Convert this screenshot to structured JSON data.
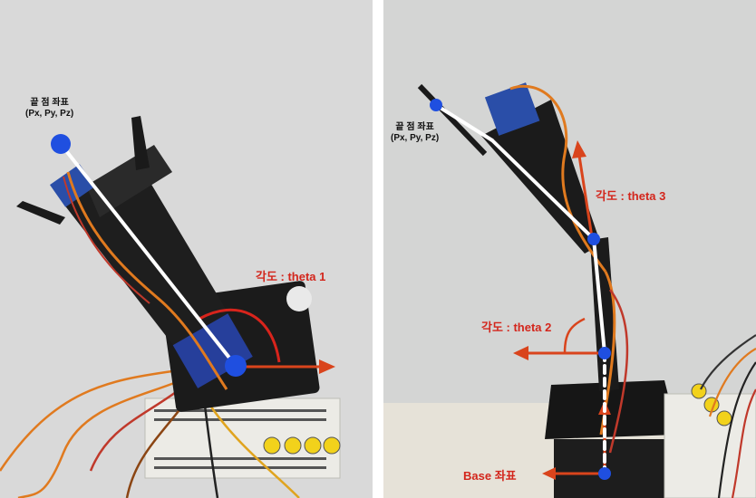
{
  "left_panel": {
    "endpoint_label_line1": "끝 점 좌표",
    "endpoint_label_line2": "(Px, Py, Pz)",
    "angle_label": "각도 : theta 1"
  },
  "right_panel": {
    "endpoint_label_line1": "끝 점 좌표",
    "endpoint_label_line2": "(Px, Py, Pz)",
    "angle3_label": "각도 : theta 3",
    "angle2_label": "각도 : theta 2",
    "base_label": "Base 좌표"
  },
  "colors": {
    "joint_marker": "#1f4fe0",
    "angle_arrow": "#d9441c",
    "angle_arc": "#d8241c",
    "label_red": "#d3261c",
    "link_line": "#ffffff"
  }
}
